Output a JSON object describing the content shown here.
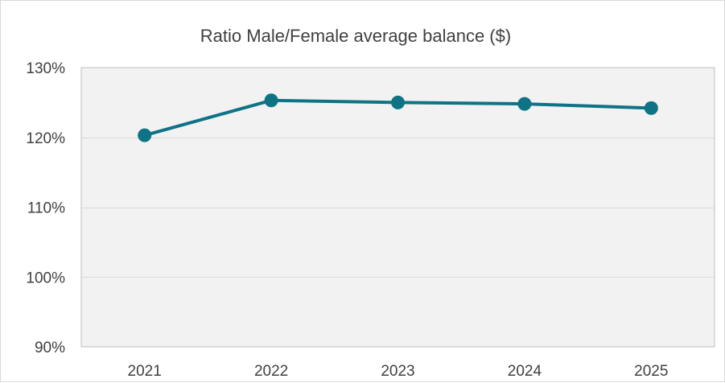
{
  "chart_data": {
    "type": "line",
    "title": "Ratio Male/Female average balance ($)",
    "xlabel": "",
    "ylabel": "",
    "categories": [
      "2021",
      "2022",
      "2023",
      "2024",
      "2025"
    ],
    "series": [
      {
        "values": [
          120.3,
          125.3,
          125.0,
          124.8,
          124.2
        ],
        "color": "#0e7385"
      }
    ],
    "ylim": [
      90,
      130
    ],
    "yticks": [
      90,
      100,
      110,
      120,
      130
    ],
    "ytick_labels": [
      "90%",
      "100%",
      "110%",
      "120%",
      "130%"
    ],
    "grid": true,
    "legend": "none",
    "colors": {
      "plot_background": "#f2f2f2",
      "gridline": "#d9d9d9",
      "axis_line": "#bfbfbf",
      "text": "#404040"
    }
  }
}
